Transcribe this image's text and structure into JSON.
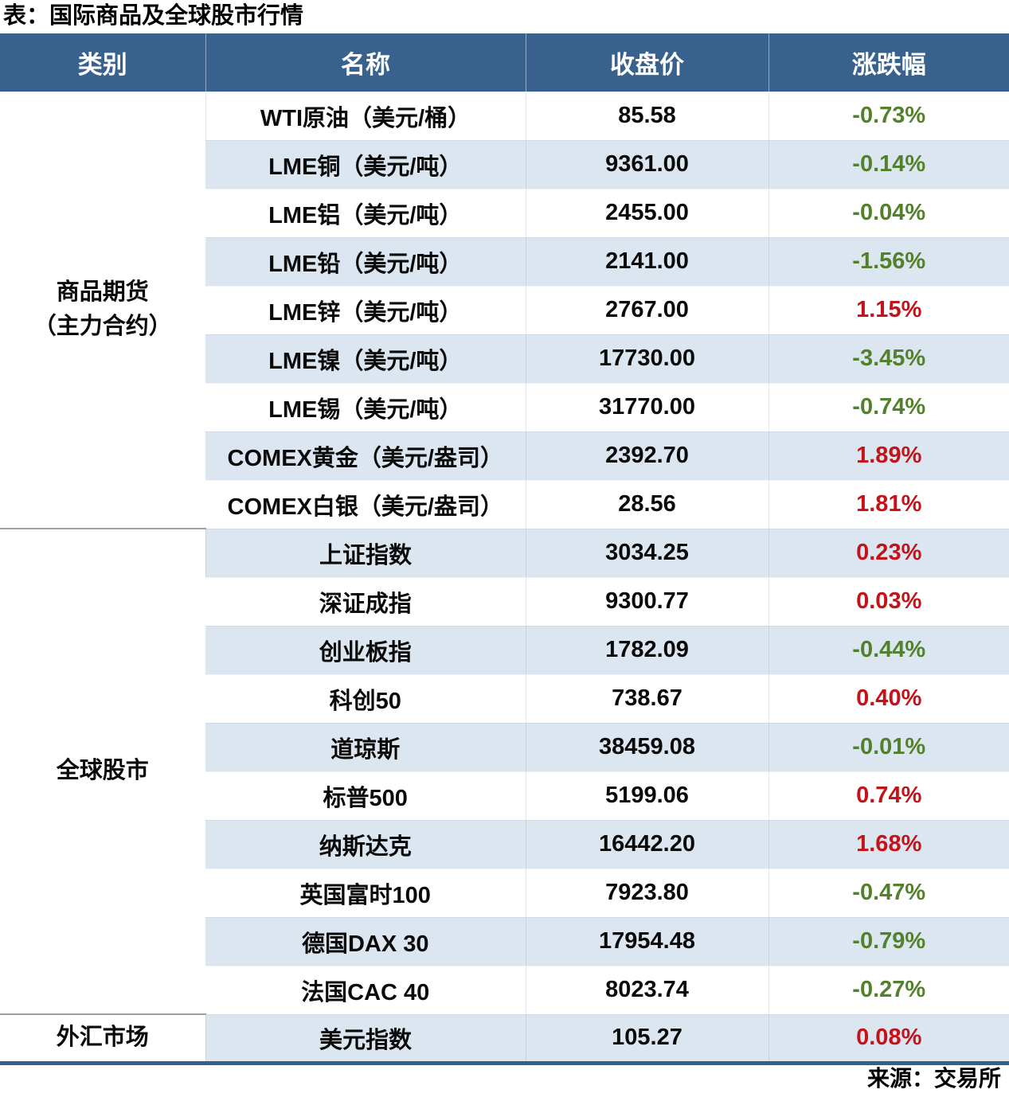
{
  "title": "表：国际商品及全球股市行情",
  "source": "来源：交易所",
  "chart_data": {
    "type": "table",
    "title": "表：国际商品及全球股市行情",
    "columns": [
      "类别",
      "名称",
      "收盘价",
      "涨跌幅"
    ],
    "source": "来源：交易所",
    "colors": {
      "header_bg": "#38618e",
      "header_text": "#ffffff",
      "stripe_bg": "#dce6f1",
      "up_red": "#c51118",
      "down_green": "#53802c",
      "group_sep": "#9aa0a6",
      "bottom_line": "#33608c"
    },
    "groups": [
      {
        "category_lines": [
          "商品期货",
          "（主力合约）"
        ],
        "rows": [
          {
            "name": "WTI原油（美元/桶）",
            "close": "85.58",
            "change": "-0.73%"
          },
          {
            "name": "LME铜（美元/吨）",
            "close": "9361.00",
            "change": "-0.14%"
          },
          {
            "name": "LME铝（美元/吨）",
            "close": "2455.00",
            "change": "-0.04%"
          },
          {
            "name": "LME铅（美元/吨）",
            "close": "2141.00",
            "change": "-1.56%"
          },
          {
            "name": "LME锌（美元/吨）",
            "close": "2767.00",
            "change": "1.15%"
          },
          {
            "name": "LME镍（美元/吨）",
            "close": "17730.00",
            "change": "-3.45%"
          },
          {
            "name": "LME锡（美元/吨）",
            "close": "31770.00",
            "change": "-0.74%"
          },
          {
            "name": "COMEX黄金（美元/盎司）",
            "close": "2392.70",
            "change": "1.89%"
          },
          {
            "name": "COMEX白银（美元/盎司）",
            "close": "28.56",
            "change": "1.81%"
          }
        ]
      },
      {
        "category_lines": [
          "全球股市"
        ],
        "rows": [
          {
            "name": "上证指数",
            "close": "3034.25",
            "change": "0.23%"
          },
          {
            "name": "深证成指",
            "close": "9300.77",
            "change": "0.03%"
          },
          {
            "name": "创业板指",
            "close": "1782.09",
            "change": "-0.44%"
          },
          {
            "name": "科创50",
            "close": "738.67",
            "change": "0.40%"
          },
          {
            "name": "道琼斯",
            "close": "38459.08",
            "change": "-0.01%"
          },
          {
            "name": "标普500",
            "close": "5199.06",
            "change": "0.74%"
          },
          {
            "name": "纳斯达克",
            "close": "16442.20",
            "change": "1.68%"
          },
          {
            "name": "英国富时100",
            "close": "7923.80",
            "change": "-0.47%"
          },
          {
            "name": "德国DAX 30",
            "close": "17954.48",
            "change": "-0.79%"
          },
          {
            "name": "法国CAC 40",
            "close": "8023.74",
            "change": "-0.27%"
          }
        ]
      },
      {
        "category_lines": [
          "外汇市场"
        ],
        "rows": [
          {
            "name": "美元指数",
            "close": "105.27",
            "change": "0.08%"
          }
        ]
      }
    ]
  }
}
